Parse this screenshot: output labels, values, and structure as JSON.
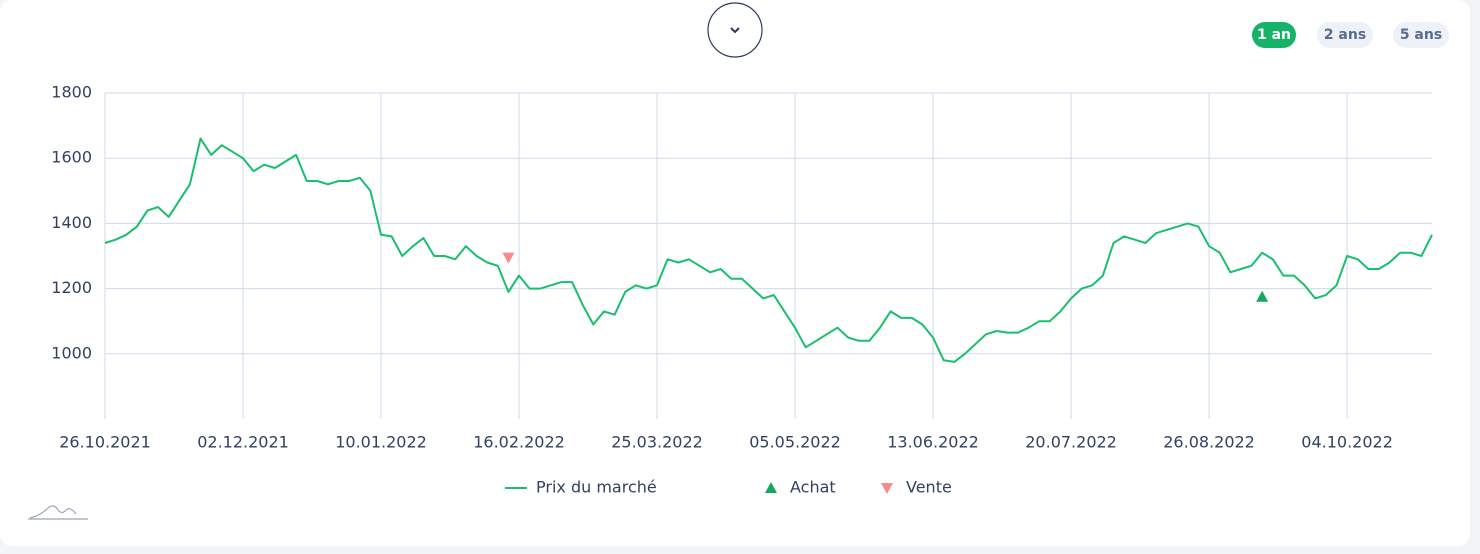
{
  "ranges": [
    "1 an",
    "2 ans",
    "5 ans"
  ],
  "chart_data": {
    "type": "line",
    "categories": [
      "26.10.2021",
      null,
      null,
      null,
      null,
      null,
      null,
      null,
      null,
      null,
      null,
      null,
      null,
      "02.12.2021",
      null,
      null,
      null,
      null,
      null,
      null,
      null,
      null,
      null,
      null,
      null,
      null,
      "10.01.2022",
      null,
      null,
      null,
      null,
      null,
      null,
      null,
      null,
      null,
      null,
      null,
      null,
      "16.02.2022",
      null,
      null,
      null,
      null,
      null,
      null,
      null,
      null,
      null,
      null,
      null,
      null,
      "25.03.2022",
      null,
      null,
      null,
      null,
      null,
      null,
      null,
      null,
      null,
      null,
      null,
      null,
      "05.05.2022",
      null,
      null,
      null,
      null,
      null,
      null,
      null,
      null,
      null,
      null,
      null,
      null,
      "13.06.2022",
      null,
      null,
      null,
      null,
      null,
      null,
      null,
      null,
      null,
      null,
      null,
      null,
      "20.07.2022",
      null,
      null,
      null,
      null,
      null,
      null,
      null,
      null,
      null,
      null,
      null,
      null,
      "26.08.2022",
      null,
      null,
      null,
      null,
      null,
      null,
      null,
      null,
      null,
      null,
      null,
      null,
      "04.10.2022",
      null,
      null,
      null,
      null,
      null,
      null,
      null,
      null
    ],
    "series": [
      {
        "name": "Prix du marché",
        "color": "#17bf6e",
        "style": "line",
        "values": [
          1340,
          1350,
          1365,
          1390,
          1440,
          1450,
          1420,
          1470,
          1520,
          1660,
          1610,
          1640,
          1620,
          1600,
          1560,
          1580,
          1570,
          1590,
          1610,
          1530,
          1530,
          1520,
          1530,
          1530,
          1540,
          1500,
          1365,
          1360,
          1300,
          1330,
          1355,
          1300,
          1300,
          1290,
          1330,
          1300,
          1280,
          1270,
          1190,
          1240,
          1200,
          1200,
          1210,
          1220,
          1220,
          1150,
          1090,
          1130,
          1120,
          1190,
          1210,
          1200,
          1210,
          1290,
          1280,
          1290,
          1270,
          1250,
          1260,
          1230,
          1230,
          1200,
          1170,
          1180,
          1130,
          1080,
          1020,
          1040,
          1060,
          1080,
          1050,
          1040,
          1040,
          1080,
          1130,
          1110,
          1110,
          1090,
          1050,
          980,
          975,
          1000,
          1030,
          1060,
          1070,
          1065,
          1065,
          1080,
          1100,
          1100,
          1130,
          1170,
          1200,
          1210,
          1240,
          1340,
          1360,
          1350,
          1340,
          1370,
          1380,
          1390,
          1400,
          1390,
          1330,
          1310,
          1250,
          1260,
          1270,
          1310,
          1290,
          1240,
          1240,
          1210,
          1170,
          1180,
          1210,
          1300,
          1290,
          1260,
          1260,
          1280,
          1310,
          1310,
          1300,
          1365
        ]
      },
      {
        "name": "Achat",
        "color": "#12a95c",
        "style": "triangle-up",
        "values": [
          null,
          null,
          null,
          null,
          null,
          null,
          null,
          null,
          null,
          null,
          null,
          null,
          null,
          null,
          null,
          null,
          null,
          null,
          null,
          null,
          null,
          null,
          null,
          null,
          null,
          null,
          null,
          null,
          null,
          null,
          null,
          null,
          null,
          null,
          null,
          null,
          null,
          null,
          null,
          null,
          null,
          null,
          null,
          null,
          null,
          null,
          null,
          null,
          null,
          null,
          null,
          null,
          null,
          null,
          null,
          null,
          null,
          null,
          null,
          null,
          null,
          null,
          null,
          null,
          null,
          null,
          null,
          null,
          null,
          null,
          null,
          null,
          null,
          null,
          null,
          null,
          null,
          null,
          null,
          null,
          null,
          null,
          null,
          null,
          null,
          null,
          null,
          null,
          null,
          null,
          null,
          null,
          null,
          null,
          null,
          null,
          null,
          null,
          null,
          null,
          null,
          null,
          null,
          null,
          null,
          null,
          null,
          null,
          null,
          1175,
          null,
          null,
          null,
          null,
          null,
          null,
          null,
          null,
          null,
          null,
          null,
          null,
          null,
          null,
          null,
          null
        ]
      },
      {
        "name": "Vente",
        "color": "#f58b8b",
        "style": "triangle-down",
        "values": [
          null,
          null,
          null,
          null,
          null,
          null,
          null,
          null,
          null,
          null,
          null,
          null,
          null,
          null,
          null,
          null,
          null,
          null,
          null,
          null,
          null,
          null,
          null,
          null,
          null,
          null,
          null,
          null,
          null,
          null,
          null,
          null,
          null,
          null,
          null,
          null,
          null,
          null,
          1295,
          null,
          null,
          null,
          null,
          null,
          null,
          null,
          null,
          null,
          null,
          null,
          null,
          null,
          null,
          null,
          null,
          null,
          null,
          null,
          null,
          null,
          null,
          null,
          null,
          null,
          null,
          null,
          null,
          null,
          null,
          null,
          null,
          null,
          null,
          null,
          null,
          null,
          null,
          null,
          null,
          null,
          null,
          null,
          null,
          null,
          null,
          null,
          null,
          null,
          null,
          null,
          null,
          null,
          null,
          null,
          null,
          null,
          null,
          null,
          null,
          null,
          null,
          null,
          null,
          null,
          null,
          null,
          null,
          null,
          null,
          null,
          null,
          null,
          null,
          null,
          null,
          null,
          null,
          null,
          null,
          null,
          null,
          null,
          null,
          null,
          null,
          null
        ]
      }
    ],
    "ylim": [
      800,
      1800
    ],
    "yticks": [
      1000,
      1200,
      1400,
      1600,
      1800
    ],
    "grid": true
  }
}
